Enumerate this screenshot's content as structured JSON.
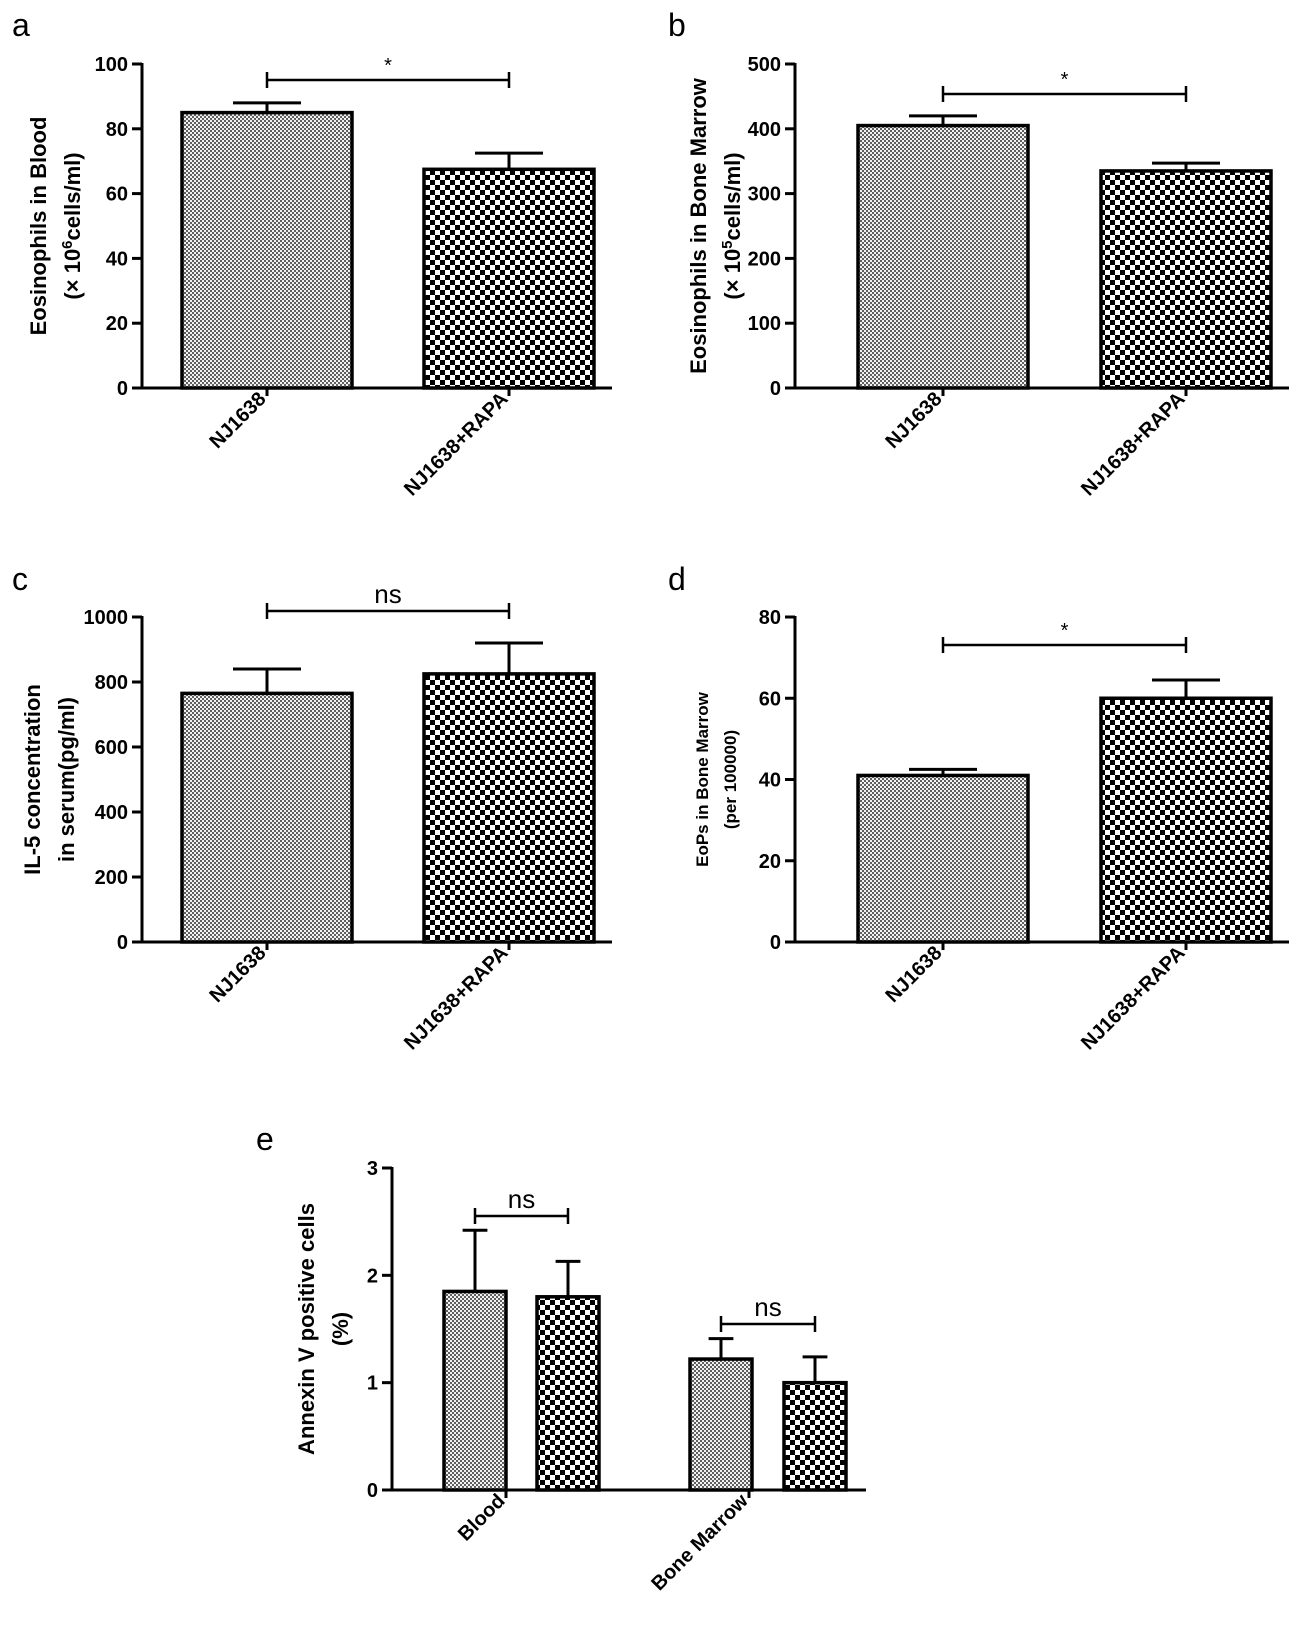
{
  "chart_data": [
    {
      "panel": "a",
      "type": "bar",
      "categories": [
        "NJ1638",
        "NJ1638+RAPA"
      ],
      "values": [
        85,
        67.5
      ],
      "errors": [
        3,
        5
      ],
      "ylim": [
        0,
        100
      ],
      "yticks": [
        0,
        20,
        40,
        60,
        80,
        100
      ],
      "ylabel": [
        "Eosinophils in Blood",
        "(× 10^6cells/ml)"
      ],
      "xlabel": "",
      "significance": [
        {
          "from": 0,
          "to": 1,
          "label": "*"
        }
      ]
    },
    {
      "panel": "b",
      "type": "bar",
      "categories": [
        "NJ1638",
        "NJ1638+RAPA"
      ],
      "values": [
        405,
        335
      ],
      "errors": [
        15,
        12
      ],
      "ylim": [
        0,
        500
      ],
      "yticks": [
        0,
        100,
        200,
        300,
        400,
        500
      ],
      "ylabel": [
        "Eosinophils in Bone Marrow",
        "(× 10^5cells/ml)"
      ],
      "xlabel": "",
      "significance": [
        {
          "from": 0,
          "to": 1,
          "label": "*"
        }
      ]
    },
    {
      "panel": "c",
      "type": "bar",
      "categories": [
        "NJ1638",
        "NJ1638+RAPA"
      ],
      "values": [
        765,
        825
      ],
      "errors": [
        75,
        95
      ],
      "ylim": [
        0,
        1000
      ],
      "yticks": [
        0,
        200,
        400,
        600,
        800,
        1000
      ],
      "ylabel": [
        "IL-5 concentration",
        "in serum(pg/ml)"
      ],
      "xlabel": "",
      "significance": [
        {
          "from": 0,
          "to": 1,
          "label": "ns"
        }
      ]
    },
    {
      "panel": "d",
      "type": "bar",
      "categories": [
        "NJ1638",
        "NJ1638+RAPA"
      ],
      "values": [
        41,
        60
      ],
      "errors": [
        1.5,
        4.5
      ],
      "ylim": [
        0,
        80
      ],
      "yticks": [
        0,
        20,
        40,
        60,
        80
      ],
      "ylabel": [
        "EoPs in Bone Marrow",
        "(per 100000)"
      ],
      "xlabel": "",
      "significance": [
        {
          "from": 0,
          "to": 1,
          "label": "*"
        }
      ]
    },
    {
      "panel": "e",
      "type": "bar",
      "categories": [
        "Blood",
        "Bone Marrow"
      ],
      "series": [
        {
          "values": [
            1.85,
            1.22
          ],
          "errors": [
            0.57,
            0.19
          ]
        },
        {
          "values": [
            1.8,
            1.0
          ],
          "errors": [
            0.33,
            0.24
          ]
        }
      ],
      "ylim": [
        0,
        3
      ],
      "yticks": [
        0,
        1,
        2,
        3
      ],
      "ylabel": [
        "Annexin V positive cells",
        "(%)"
      ],
      "xlabel": "",
      "significance": [
        {
          "group": 0,
          "label": "ns"
        },
        {
          "group": 1,
          "label": "ns"
        }
      ]
    }
  ],
  "colors": {
    "series_dense": "#8c8c8c",
    "series_checker": "#000000",
    "background": "#ffffff"
  }
}
